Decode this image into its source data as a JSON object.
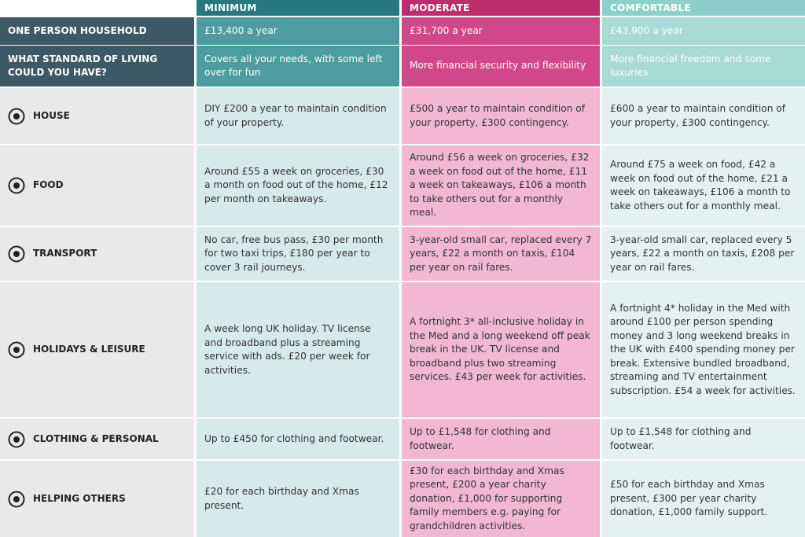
{
  "header": {
    "columns": [
      "MINIMUM",
      "MODERATE",
      "COMFORTABLE"
    ]
  },
  "summary_rows": [
    {
      "label": "ONE PERSON HOUSEHOLD",
      "cells": [
        "£13,400 a year",
        "£31,700 a year",
        "£43,900 a year"
      ]
    },
    {
      "label": "WHAT STANDARD OF LIVING COULD YOU HAVE?",
      "cells": [
        "Covers all your needs, with some left over for fun",
        "More financial security and flexibility",
        "More financial freedom and some luxuries"
      ]
    }
  ],
  "rows": [
    {
      "label": "HOUSE",
      "cells": [
        "DIY £200 a year to maintain condition of your property.",
        "£500 a year to maintain condition of your property, £300 contingency.",
        "£600 a year to maintain condition of your property, £300 contingency."
      ]
    },
    {
      "label": "FOOD",
      "cells": [
        "Around £55 a week on groceries, £30 a month on food out of the home, £12 per month on takeaways.",
        "Around £56 a week on groceries, £32 a week on food out of the home, £11 a week on takeaways, £106 a month to take others out for a monthly meal.",
        "Around £75 a week on food, £42 a week on food out of the home, £21 a week on takeaways, £106 a month to take others out for a monthly meal."
      ]
    },
    {
      "label": "TRANSPORT",
      "cells": [
        "No car, free bus pass, £30 per month for two taxi trips, £180 per year to cover 3 rail journeys.",
        "3-year-old small car, replaced every 7 years, £22 a month on taxis, £104 per year on rail fares.",
        "3-year-old small car, replaced every 5 years, £22 a month on taxis, £208 per year on rail fares."
      ]
    },
    {
      "label": "HOLIDAYS & LEISURE",
      "cells": [
        "A week long UK holiday. TV license and broadband plus a streaming service with ads. £20 per week for activities.",
        "A fortnight 3* all-inclusive holiday in the Med and a long weekend off peak break in the UK. TV license and broadband plus two streaming services. £43 per week for activities.",
        "A fortnight 4* holiday in the Med with around £100 per person spending money and 3 long weekend breaks in the UK with £400 spending money per break. Extensive bundled broadband, streaming and TV entertainment subscription. £54 a week for activities."
      ]
    },
    {
      "label": "CLOTHING & PERSONAL",
      "cells": [
        "Up to £450 for clothing and footwear.",
        "Up to £1,548 for clothing and footwear.",
        "Up to £1,548 for clothing and footwear."
      ]
    },
    {
      "label": "HELPING OTHERS",
      "cells": [
        "£20 for each birthday and Xmas present.",
        "£30 for each birthday and Xmas present, £200 a year charity donation, £1,000 for supporting family members e.g. paying for grandchildren activities.",
        "£50 for each birthday and Xmas present, £300 per year charity donation, £1,000 family support."
      ]
    }
  ]
}
